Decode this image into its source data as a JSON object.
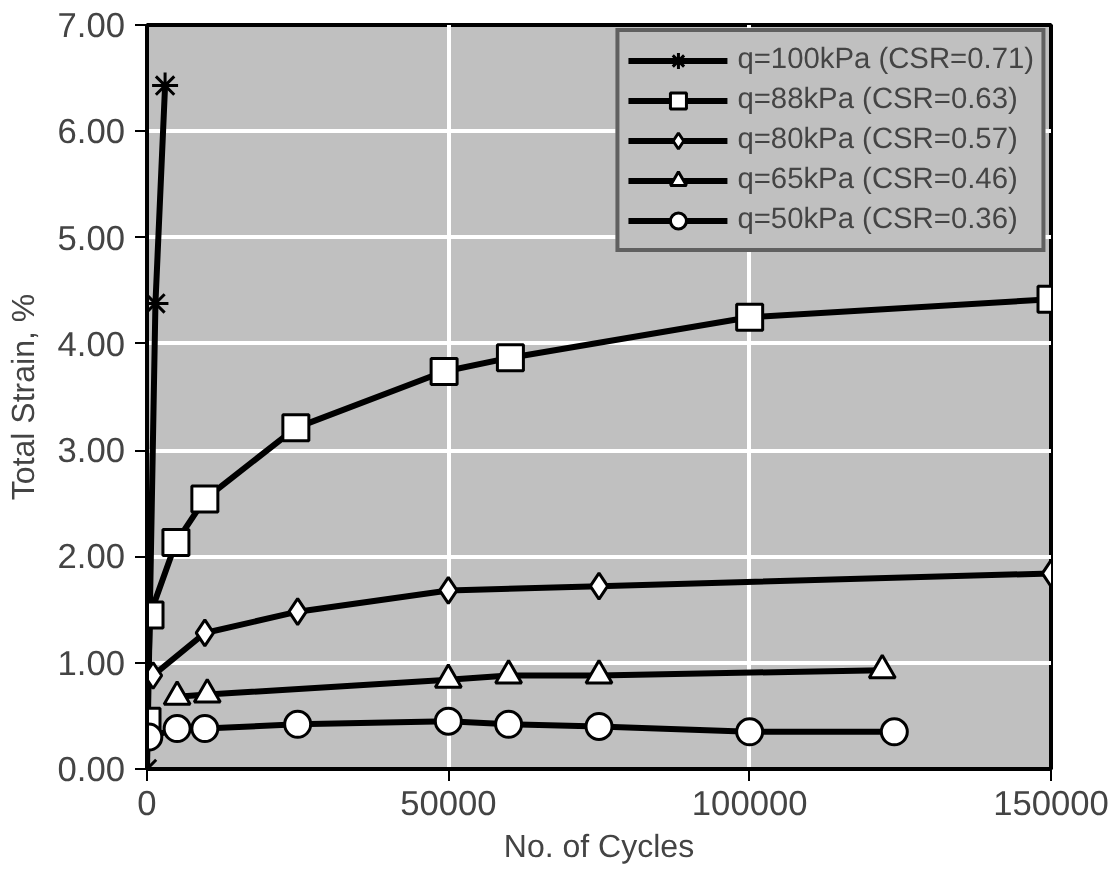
{
  "chart_data": {
    "type": "line",
    "xlabel": "No. of Cycles",
    "ylabel": "Total Strain, %",
    "xlim": [
      0,
      150000
    ],
    "ylim": [
      0,
      7
    ],
    "xticks": [
      0,
      50000,
      100000,
      150000
    ],
    "yticks": [
      {
        "value": 0,
        "label": "0.00"
      },
      {
        "value": 1,
        "label": "1.00"
      },
      {
        "value": 2,
        "label": "2.00"
      },
      {
        "value": 3,
        "label": "3.00"
      },
      {
        "value": 4,
        "label": "4.00"
      },
      {
        "value": 5,
        "label": "5.00"
      },
      {
        "value": 6,
        "label": "6.00"
      },
      {
        "value": 7,
        "label": "7.00"
      }
    ],
    "grid": true,
    "legend": "top right",
    "series": [
      {
        "name": "q=100kPa (CSR=0.71)",
        "color": "#000000",
        "marker": "cross",
        "x": [
          0,
          1400,
          3000
        ],
        "values": [
          0,
          4.38,
          6.43
        ]
      },
      {
        "name": "q=88kPa (CSR=0.63)",
        "color": "#000000",
        "marker": "square",
        "x": [
          0,
          500,
          4800,
          9600,
          24700,
          49300,
          60300,
          100000,
          150000
        ],
        "values": [
          0.45,
          1.45,
          2.13,
          2.54,
          3.21,
          3.74,
          3.87,
          4.25,
          4.42
        ]
      },
      {
        "name": "q=80kPa (CSR=0.57)",
        "color": "#000000",
        "marker": "diamond",
        "x": [
          1000,
          9600,
          25000,
          50000,
          75000,
          150000
        ],
        "values": [
          0.88,
          1.28,
          1.48,
          1.68,
          1.72,
          1.84
        ]
      },
      {
        "name": "q=65kPa (CSR=0.46)",
        "color": "#000000",
        "marker": "triangle",
        "x": [
          5000,
          10000,
          50000,
          60000,
          75000,
          122000
        ],
        "values": [
          0.68,
          0.7,
          0.84,
          0.88,
          0.88,
          0.93
        ]
      },
      {
        "name": "q=50kPa (CSR=0.36)",
        "color": "#000000",
        "marker": "circle",
        "x": [
          300,
          5000,
          9600,
          25000,
          50000,
          60000,
          75000,
          100000,
          124000
        ],
        "values": [
          0.3,
          0.38,
          0.38,
          0.42,
          0.45,
          0.42,
          0.4,
          0.35,
          0.35
        ]
      }
    ]
  }
}
